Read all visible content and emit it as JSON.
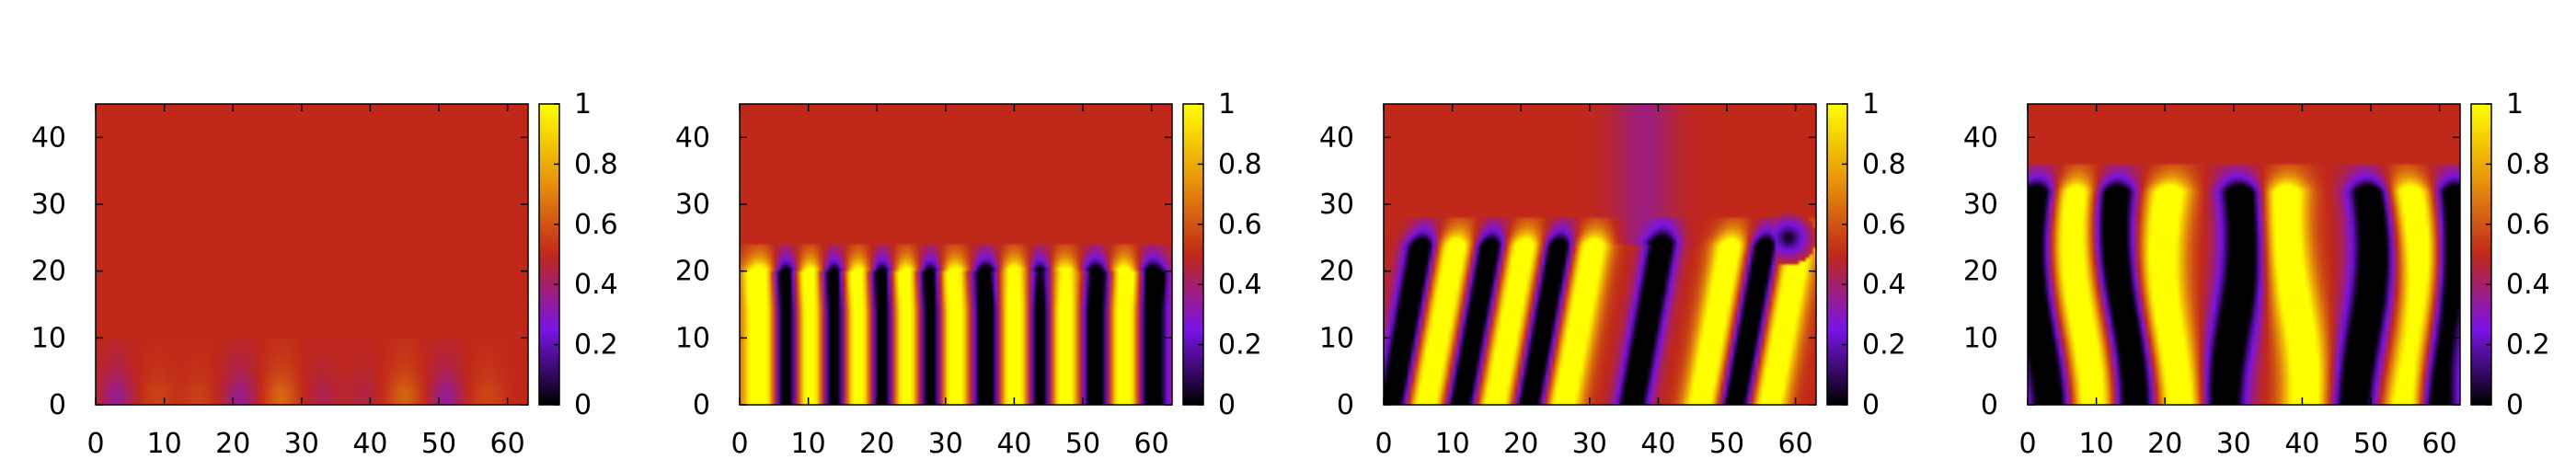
{
  "chart_data": [
    {
      "type": "heatmap",
      "title": "",
      "xlabel": "",
      "ylabel": "",
      "xlim": [
        0,
        63
      ],
      "ylim": [
        0,
        45
      ],
      "x_ticks": [
        0,
        10,
        20,
        30,
        40,
        50,
        60
      ],
      "y_ticks": [
        0,
        10,
        20,
        30,
        40
      ],
      "colorbar": {
        "range": [
          0,
          1
        ],
        "ticks": [
          0,
          0.2,
          0.4,
          0.6,
          0.8,
          1
        ]
      },
      "colormap": [
        "#000000",
        "#7a14e6",
        "#c0281a",
        "#e8960a",
        "#ffff00"
      ],
      "field": {
        "base": 0.5,
        "texture": "faint blobs near bottom",
        "stripe_xs": [
          3,
          9,
          15,
          21,
          27,
          33,
          39,
          45,
          51,
          57
        ],
        "front_y": 7,
        "amplitude": 0.15
      }
    },
    {
      "type": "heatmap",
      "title": "",
      "xlabel": "",
      "ylabel": "",
      "xlim": [
        0,
        63
      ],
      "ylim": [
        0,
        45
      ],
      "x_ticks": [
        0,
        10,
        20,
        30,
        40,
        50,
        60
      ],
      "y_ticks": [
        0,
        10,
        20,
        30,
        40
      ],
      "colorbar": {
        "range": [
          0,
          1
        ],
        "ticks": [
          0,
          0.2,
          0.4,
          0.6,
          0.8,
          1
        ]
      },
      "colormap": [
        "#000000",
        "#7a14e6",
        "#c0281a",
        "#e8960a",
        "#ffff00"
      ],
      "field": {
        "base": 0.5,
        "texture": "high and low stripes up to y~20",
        "high_xs": [
          3,
          10,
          17,
          24,
          31,
          40,
          47,
          56
        ],
        "low_xs": [
          7,
          14,
          21,
          28,
          36,
          44,
          52,
          60
        ],
        "front_y": 20
      }
    },
    {
      "type": "heatmap",
      "title": "",
      "xlabel": "",
      "ylabel": "",
      "xlim": [
        0,
        63
      ],
      "ylim": [
        0,
        45
      ],
      "x_ticks": [
        0,
        10,
        20,
        30,
        40,
        50,
        60
      ],
      "y_ticks": [
        0,
        10,
        20,
        30,
        40
      ],
      "colorbar": {
        "range": [
          0,
          1
        ],
        "ticks": [
          0,
          0.2,
          0.4,
          0.6,
          0.8,
          1
        ]
      },
      "colormap": [
        "#000000",
        "#7a14e6",
        "#c0281a",
        "#e8960a",
        "#ffff00"
      ],
      "field": {
        "base": 0.5,
        "texture": "tall arched stripes up to y~25",
        "high_xs": [
          8,
          18,
          28,
          48,
          58
        ],
        "low_xs": [
          3,
          13,
          23,
          38,
          53
        ],
        "front_y": 24,
        "dark_blob": [
          59,
          25
        ]
      }
    },
    {
      "type": "heatmap",
      "title": "",
      "xlabel": "",
      "ylabel": "",
      "xlim": [
        0,
        63
      ],
      "ylim": [
        0,
        45
      ],
      "x_ticks": [
        0,
        10,
        20,
        30,
        40,
        50,
        60
      ],
      "y_ticks": [
        0,
        10,
        20,
        30,
        40
      ],
      "colorbar": {
        "range": [
          0,
          1
        ],
        "ticks": [
          0,
          0.2,
          0.4,
          0.6,
          0.8,
          1
        ]
      },
      "colormap": [
        "#000000",
        "#7a14e6",
        "#c0281a",
        "#e8960a",
        "#ffff00"
      ],
      "field": {
        "base": 0.5,
        "texture": "vertical columns up to y~32",
        "high_xs": [
          8,
          21,
          39,
          56
        ],
        "low_xs": [
          2,
          14,
          30,
          49,
          61
        ],
        "front_y": 32
      }
    }
  ]
}
